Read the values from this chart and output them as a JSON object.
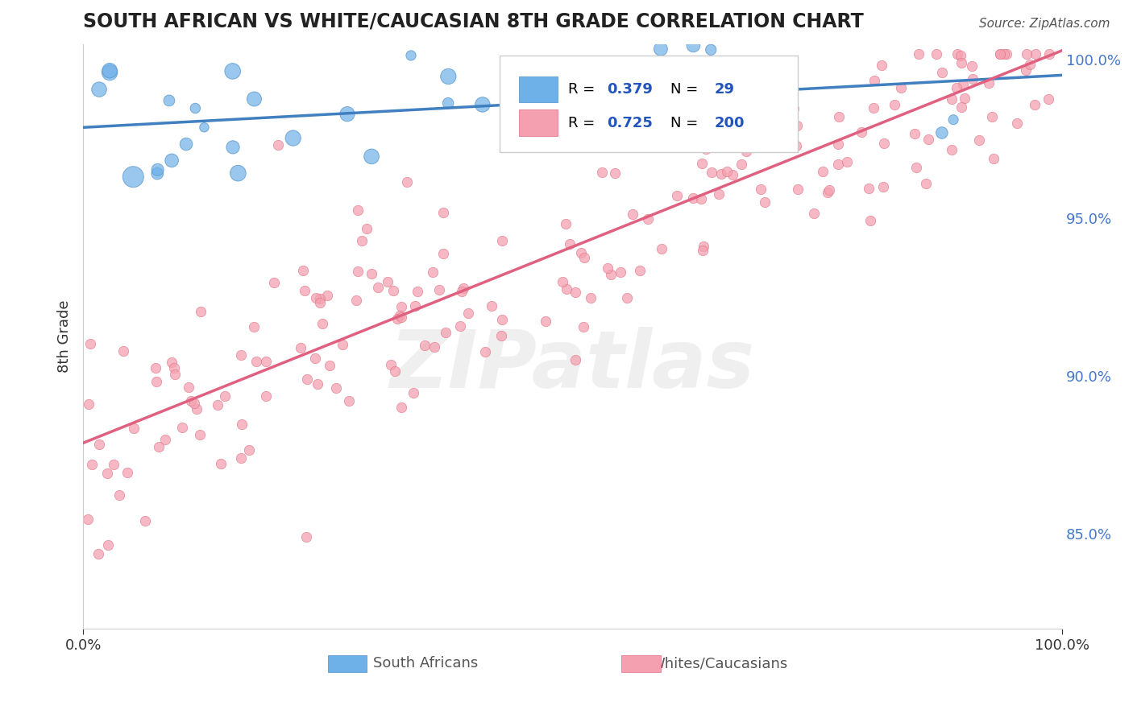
{
  "title": "SOUTH AFRICAN VS WHITE/CAUCASIAN 8TH GRADE CORRELATION CHART",
  "source": "Source: ZipAtlas.com",
  "ylabel": "8th Grade",
  "right_yticks": [
    85.0,
    90.0,
    95.0,
    100.0
  ],
  "right_yticklabels": [
    "85.0%",
    "90.0%",
    "95.0%",
    "100.0%"
  ],
  "xlim": [
    0.0,
    1.0
  ],
  "ylim": [
    0.82,
    1.005
  ],
  "blue_R": 0.379,
  "blue_N": 29,
  "pink_R": 0.725,
  "pink_N": 200,
  "legend_labels": [
    "South Africans",
    "Whites/Caucasians"
  ],
  "blue_color": "#6eb0e8",
  "blue_edge": "#5090c8",
  "pink_color": "#f4a0b0",
  "pink_edge": "#e07080",
  "blue_line_color": "#4080c0",
  "pink_line_color": "#e06080",
  "watermark": "ZIPatlas",
  "background_color": "#ffffff",
  "grid_color": "#cccccc",
  "title_color": "#222222",
  "axis_label_color": "#333333",
  "right_tick_color": "#4477cc",
  "legend_R_color": "#2255bb"
}
